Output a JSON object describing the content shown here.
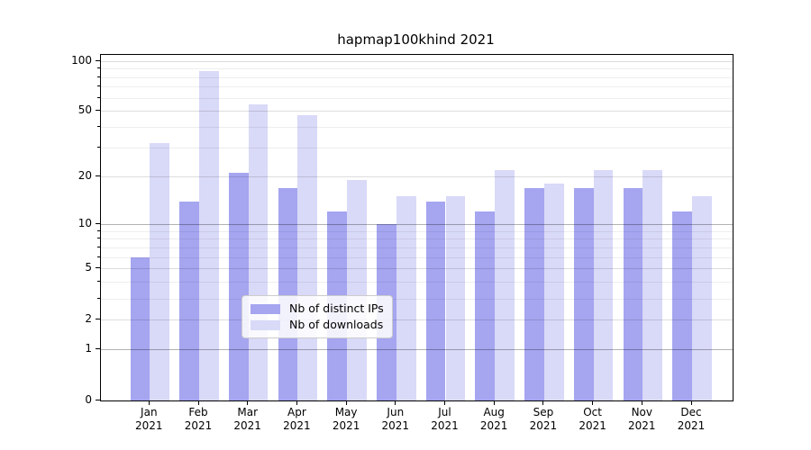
{
  "title": "hapmap100khind 2021",
  "chart_data": {
    "type": "bar",
    "title": "hapmap100khind 2021",
    "categories": [
      "Jan 2021",
      "Feb 2021",
      "Mar 2021",
      "Apr 2021",
      "May 2021",
      "Jun 2021",
      "Jul 2021",
      "Aug 2021",
      "Sep 2021",
      "Oct 2021",
      "Nov 2021",
      "Dec 2021"
    ],
    "series": [
      {
        "name": "Nb of distinct IPs",
        "color": "#a5a5f0",
        "values": [
          6,
          14,
          21,
          17,
          12,
          10,
          14,
          12,
          17,
          17,
          17,
          12
        ]
      },
      {
        "name": "Nb of downloads",
        "color": "#d9d9f8",
        "values": [
          32,
          87,
          55,
          47,
          19,
          15,
          15,
          22,
          18,
          22,
          22,
          15
        ]
      }
    ],
    "yscale": "log1p",
    "ylim": [
      0,
      108.4
    ],
    "y_ticks": [
      0,
      1,
      2,
      5,
      10,
      20,
      50,
      100
    ],
    "y_minor_ticks": [
      3,
      4,
      6,
      7,
      8,
      9,
      30,
      40,
      60,
      70,
      80,
      90
    ],
    "xlabel": "",
    "ylabel": "",
    "grid": true,
    "legend": {
      "position": "inside-lower-center",
      "labels": [
        "Nb of distinct IPs",
        "Nb of downloads"
      ]
    }
  }
}
